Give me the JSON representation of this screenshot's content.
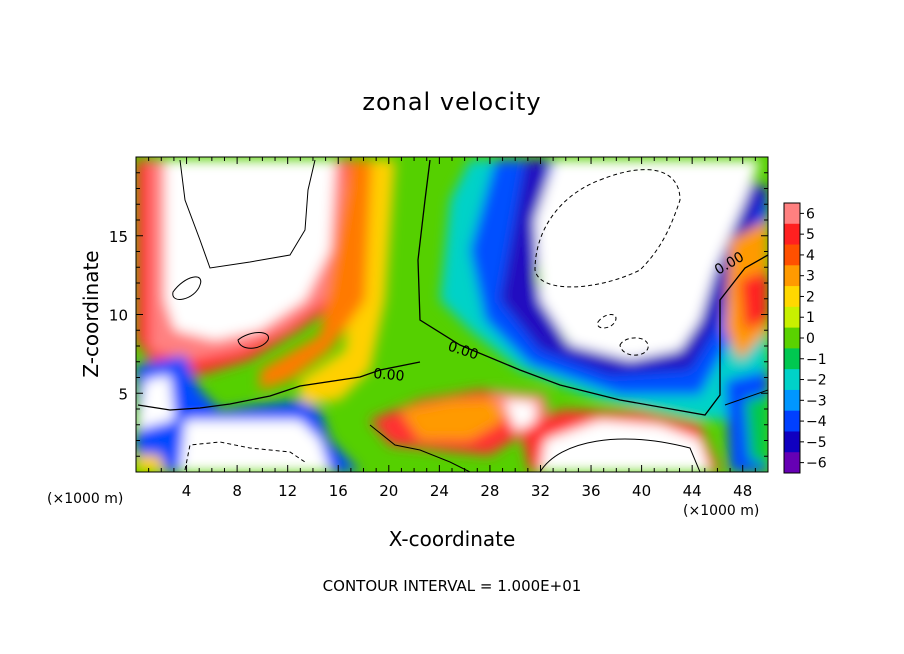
{
  "chart_data": {
    "type": "heatmap",
    "title": "zonal velocity",
    "xlabel": "X-coordinate",
    "ylabel": "Z-coordinate",
    "x_unit": "(×1000 m)",
    "y_unit": "(×1000 m)",
    "xlim": [
      0,
      50
    ],
    "ylim": [
      0,
      20
    ],
    "x_ticks": [
      4,
      8,
      12,
      16,
      20,
      24,
      28,
      32,
      36,
      40,
      44,
      48
    ],
    "y_ticks": [
      5,
      10,
      15
    ],
    "colorbar": {
      "levels": [
        6,
        5,
        4,
        3,
        2,
        1,
        0,
        -1,
        -2,
        -3,
        -4,
        -5,
        -6
      ],
      "colors": [
        "#ff8080",
        "#ff2020",
        "#ff5000",
        "#ff9a00",
        "#ffd800",
        "#c8f000",
        "#5ad200",
        "#00c850",
        "#00d2c8",
        "#0096ff",
        "#0040ff",
        "#1000c0",
        "#6600b4"
      ]
    },
    "contour_label": "0.00",
    "footer": "CONTOUR INTERVAL = 1.000E+01"
  }
}
